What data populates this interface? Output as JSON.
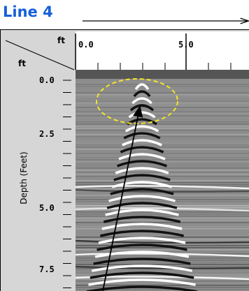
{
  "title": "Line 4",
  "x_axis": {
    "unit": "ft",
    "labels": [
      "0.0",
      "5.0"
    ]
  },
  "y_axis": {
    "unit": "ft",
    "title": "Depth (Feet)",
    "labels": [
      "0.0",
      "2.5",
      "5.0",
      "7.5"
    ]
  }
}
